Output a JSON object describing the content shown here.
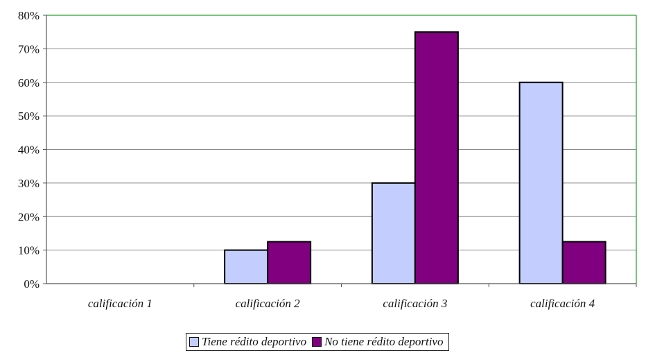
{
  "chart_data": {
    "type": "bar",
    "categories": [
      "calificación 1",
      "calificación 2",
      "calificación 3",
      "calificación 4"
    ],
    "series": [
      {
        "name": "Tiene rédito deportivo",
        "color": "#c3ceff",
        "values": [
          0,
          10,
          30,
          60
        ]
      },
      {
        "name": "No tiene rédito deportivo",
        "color": "#800080",
        "values": [
          0,
          12.5,
          75,
          12.5
        ]
      }
    ],
    "y_ticks": [
      "0%",
      "10%",
      "20%",
      "30%",
      "40%",
      "50%",
      "60%",
      "70%",
      "80%"
    ],
    "ylim": [
      0,
      80
    ],
    "y_unit": "%",
    "grid": true,
    "grid_color": "#8a8a8a",
    "plot_border_color": "#4caf50",
    "legend_position": "bottom"
  }
}
